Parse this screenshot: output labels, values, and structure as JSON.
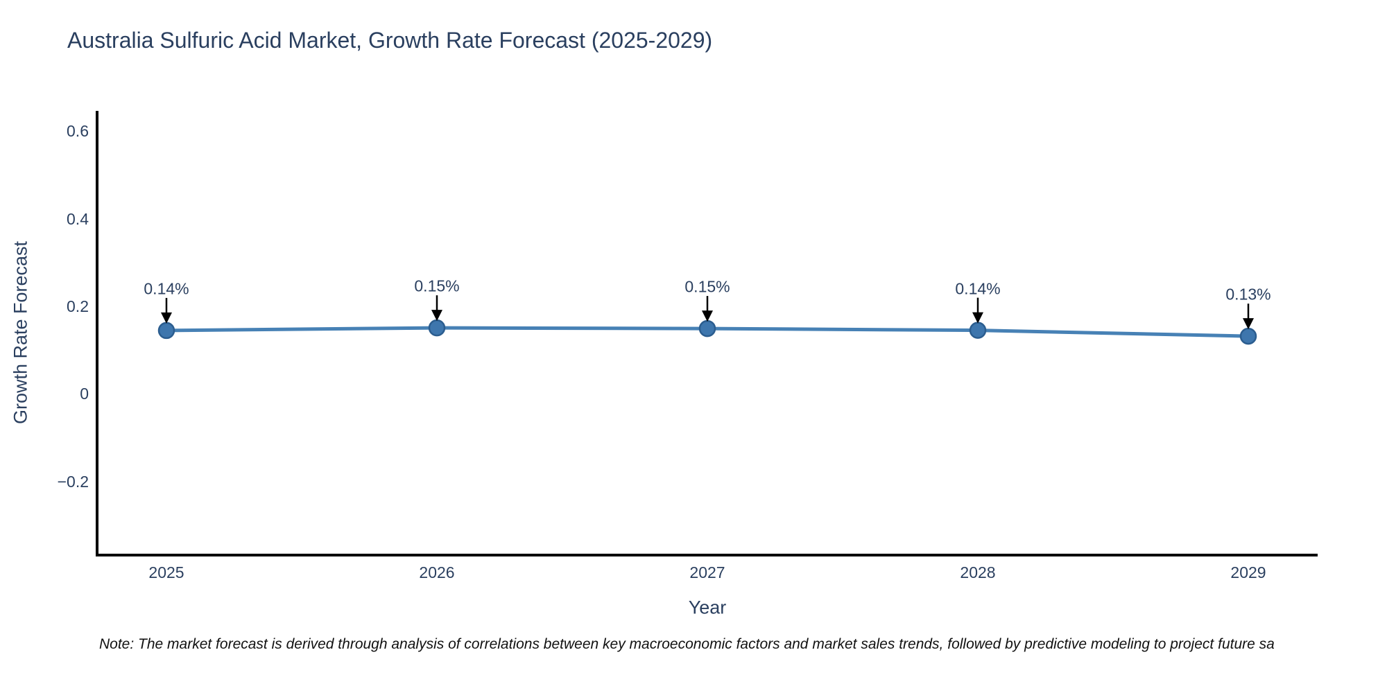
{
  "title": "Australia Sulfuric Acid Market, Growth Rate Forecast (2025-2029)",
  "footnote": "Note: The market forecast is derived through analysis of correlations between key macroeconomic factors and market sales trends, followed by predictive modeling to project future sa",
  "chart_data": {
    "type": "line",
    "title": "Australia Sulfuric Acid Market, Growth Rate Forecast (2025-2029)",
    "xlabel": "Year",
    "ylabel": "Growth Rate Forecast",
    "x": [
      2025,
      2026,
      2027,
      2028,
      2029
    ],
    "values": [
      0.14,
      0.15,
      0.15,
      0.14,
      0.13
    ],
    "values_precise": [
      0.144,
      0.15,
      0.1485,
      0.1445,
      0.131
    ],
    "annotations": [
      "0.14%",
      "0.15%",
      "0.15%",
      "0.14%",
      "0.13%"
    ],
    "xticks": [
      "2025",
      "2026",
      "2027",
      "2028",
      "2029"
    ],
    "yticks": [
      "0.6",
      "0.4",
      "0.2",
      "0",
      "−0.2"
    ],
    "ylim": [
      -0.37,
      0.65
    ],
    "grid": false,
    "legend": "none",
    "colors": {
      "line": "#4781b5",
      "marker_fill": "#3e76ad",
      "marker_edge": "#2b5d8f",
      "axis_line": "#000000",
      "text": "#2a3f5f",
      "arrow": "#000000",
      "background": "#ffffff"
    }
  }
}
